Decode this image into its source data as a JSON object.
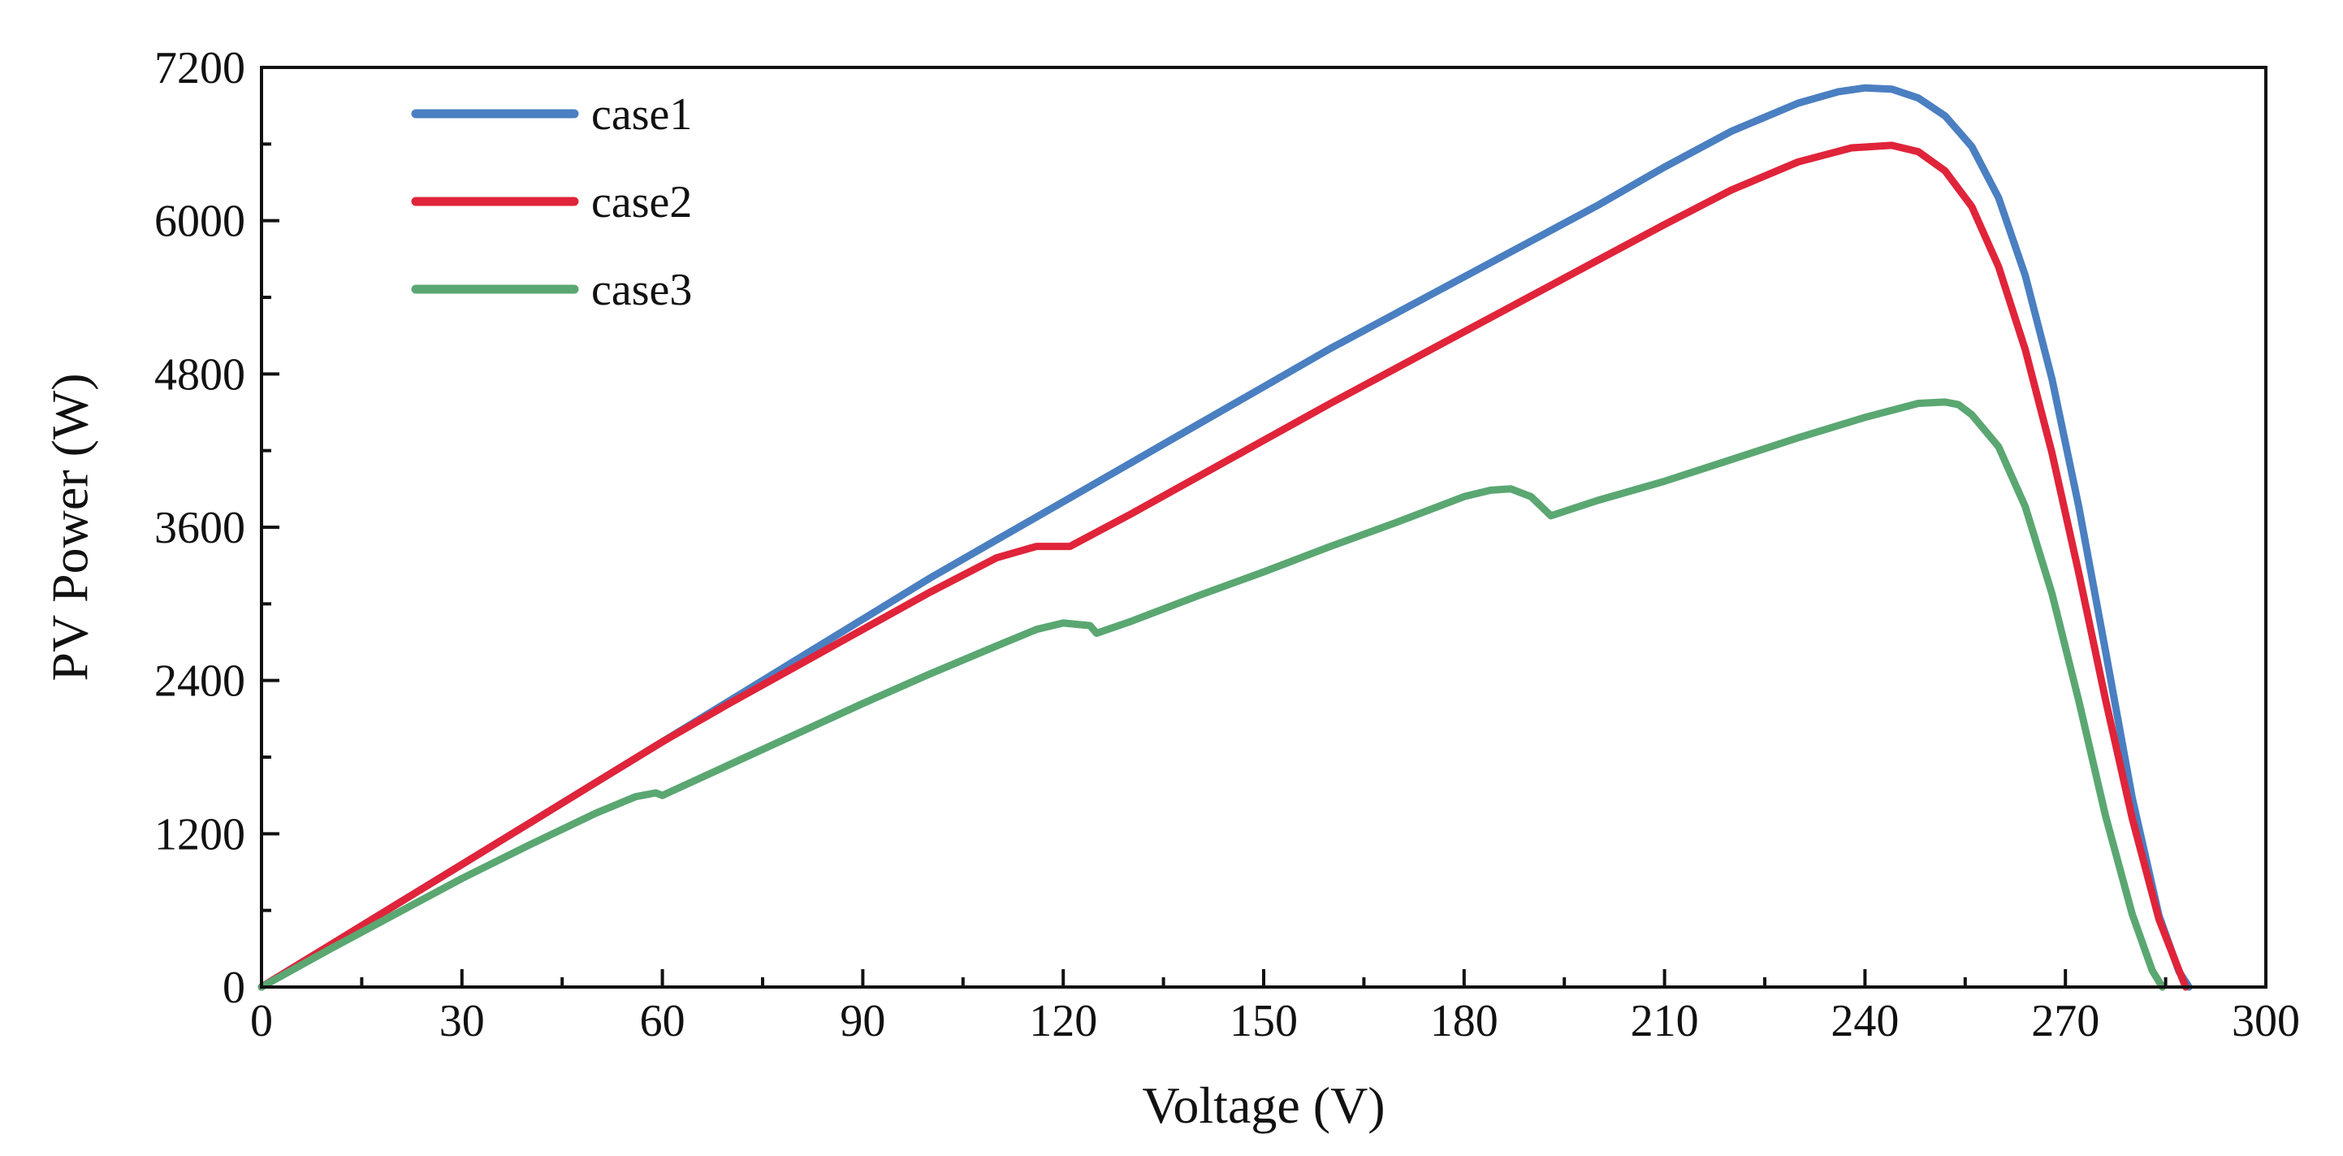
{
  "chart_data": {
    "type": "line",
    "title": "",
    "xlabel": "Voltage (V)",
    "ylabel": "PV Power (W)",
    "xlim": [
      0,
      300
    ],
    "ylim": [
      0,
      7200
    ],
    "xticks": [
      "0",
      "30",
      "60",
      "90",
      "120",
      "150",
      "180",
      "210",
      "240",
      "270",
      "300"
    ],
    "yticks": [
      "0",
      "1200",
      "2400",
      "3600",
      "4800",
      "6000",
      "7200"
    ],
    "grid": false,
    "legend_position": "top-left",
    "series": [
      {
        "name": "case1",
        "color": "#4a7fc1",
        "x": [
          0,
          10,
          20,
          30,
          40,
          50,
          60,
          70,
          80,
          90,
          100,
          110,
          120,
          130,
          140,
          150,
          160,
          170,
          180,
          190,
          200,
          210,
          220,
          230,
          236,
          240,
          244,
          248,
          252,
          256,
          260,
          264,
          268,
          272,
          276,
          280,
          284,
          287,
          288.5
        ],
        "y": [
          0,
          320,
          640,
          960,
          1280,
          1600,
          1920,
          2240,
          2560,
          2880,
          3200,
          3500,
          3800,
          4100,
          4400,
          4700,
          5000,
          5280,
          5560,
          5840,
          6120,
          6420,
          6700,
          6920,
          7010,
          7040,
          7030,
          6960,
          6820,
          6580,
          6180,
          5570,
          4760,
          3760,
          2630,
          1480,
          560,
          120,
          0
        ]
      },
      {
        "name": "case2",
        "color": "#e0243a",
        "x": [
          0,
          10,
          20,
          30,
          40,
          50,
          60,
          70,
          80,
          90,
          100,
          110,
          116,
          121,
          130,
          140,
          150,
          160,
          170,
          180,
          190,
          200,
          210,
          220,
          230,
          238,
          244,
          248,
          252,
          256,
          260,
          264,
          268,
          272,
          276,
          280,
          284,
          287,
          288
        ],
        "y": [
          0,
          320,
          640,
          960,
          1280,
          1600,
          1920,
          2220,
          2510,
          2800,
          3090,
          3360,
          3450,
          3450,
          3700,
          3990,
          4280,
          4570,
          4850,
          5130,
          5410,
          5690,
          5970,
          6240,
          6460,
          6570,
          6590,
          6540,
          6390,
          6110,
          5640,
          4990,
          4180,
          3240,
          2250,
          1320,
          530,
          130,
          0
        ]
      },
      {
        "name": "case3",
        "color": "#5aa772",
        "x": [
          0,
          10,
          20,
          30,
          40,
          50,
          56,
          59,
          60,
          70,
          80,
          90,
          100,
          110,
          116,
          120,
          124,
          125,
          130,
          140,
          150,
          160,
          170,
          180,
          184,
          187,
          190,
          193,
          200,
          210,
          220,
          230,
          240,
          248,
          252,
          254,
          256,
          260,
          264,
          268,
          272,
          276,
          280,
          283,
          284.5
        ],
        "y": [
          0,
          290,
          570,
          850,
          1110,
          1360,
          1490,
          1520,
          1500,
          1740,
          1980,
          2220,
          2450,
          2670,
          2800,
          2850,
          2830,
          2770,
          2860,
          3060,
          3250,
          3450,
          3640,
          3840,
          3890,
          3900,
          3840,
          3690,
          3810,
          3960,
          4130,
          4300,
          4460,
          4570,
          4580,
          4560,
          4480,
          4230,
          3760,
          3080,
          2240,
          1340,
          570,
          130,
          0
        ]
      }
    ]
  }
}
